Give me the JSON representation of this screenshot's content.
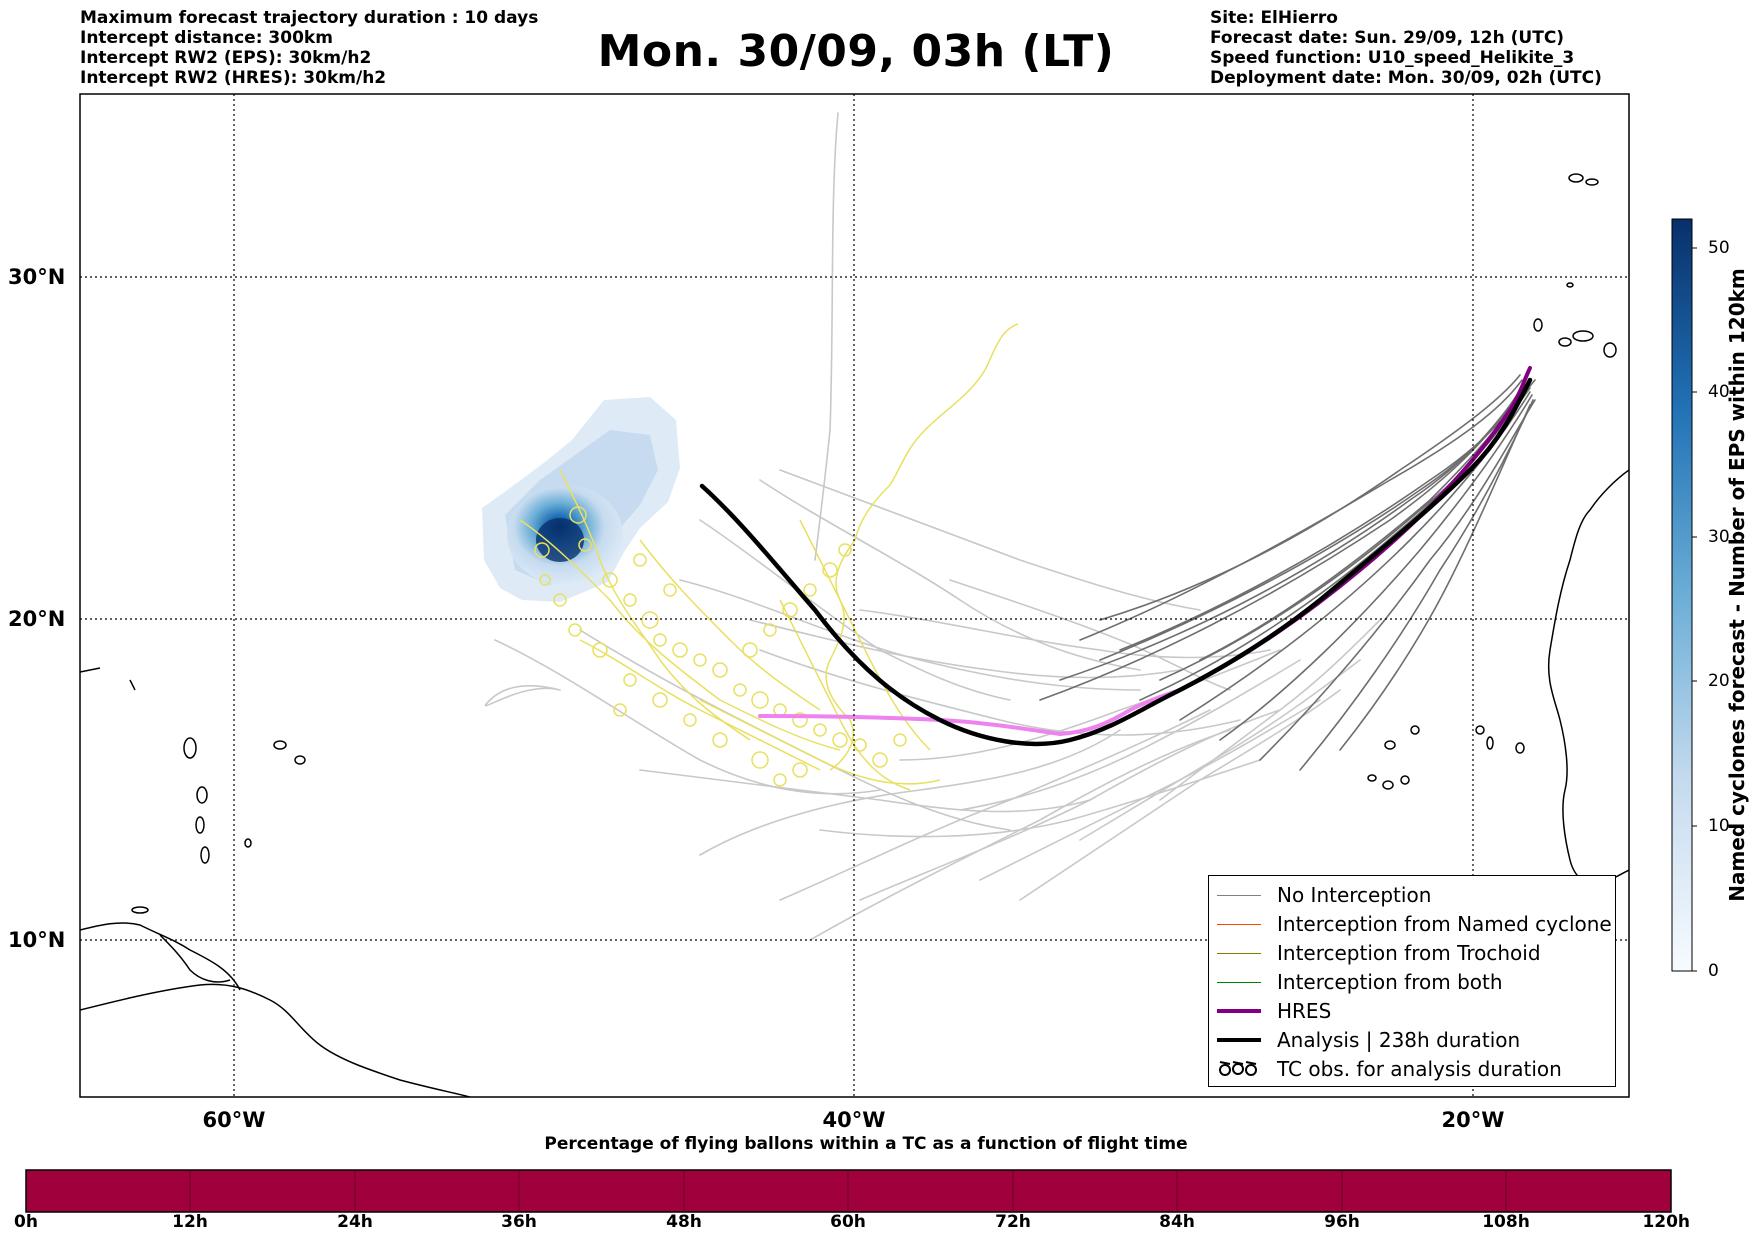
{
  "header": {
    "left_lines": [
      "Maximum forecast trajectory duration : 10 days",
      "Intercept distance: 300km",
      "Intercept RW2 (EPS):  30km/h2",
      "Intercept RW2 (HRES): 30km/h2"
    ],
    "title": "Mon. 30/09, 03h (LT)",
    "right_lines": [
      "Site: ElHierro",
      "Forecast date: Sun. 29/09, 12h (UTC)",
      "Speed function: U10_speed_Helikite_3",
      "Deployment date: Mon. 30/09, 02h (UTC)"
    ]
  },
  "map": {
    "lon_labels": [
      "60°W",
      "40°W",
      "20°W"
    ],
    "lat_labels": [
      "30°N",
      "20°N",
      "10°N"
    ],
    "colors": {
      "no_interception": "#808080",
      "named_cyclone": "#ff4500",
      "trochoid": "#808000",
      "both": "#008000",
      "hres": "#800080",
      "hres_highlight": "#ee82ee",
      "analysis": "#000000",
      "tc_obs": "#e8e060",
      "eps_density": "#1f77b4"
    }
  },
  "legend": {
    "items": [
      {
        "label": "No Interception",
        "icon": "thin-line"
      },
      {
        "label": "Interception from Named cyclone",
        "icon": "thin-line"
      },
      {
        "label": "Interception from Trochoid",
        "icon": "thin-line"
      },
      {
        "label": "Interception from both",
        "icon": "thin-line"
      },
      {
        "label": "HRES",
        "icon": "thick-line"
      },
      {
        "label": "Analysis | 238h duration",
        "icon": "thick-line"
      },
      {
        "label": "TC obs. for analysis duration",
        "icon": "loops-icon"
      }
    ]
  },
  "colorbar_vertical": {
    "title": "Named cyclones forecast - Number of EPS within 120km",
    "ticks": [
      "0",
      "10",
      "20",
      "30",
      "40",
      "50"
    ],
    "min": 0,
    "max": 52
  },
  "colorbar_horizontal": {
    "title": "Percentage of flying ballons within a TC as a function of flight time",
    "ticks": [
      "0h",
      "12h",
      "24h",
      "36h",
      "48h",
      "60h",
      "72h",
      "84h",
      "96h",
      "108h",
      "120h"
    ],
    "color": "#a0003c"
  }
}
